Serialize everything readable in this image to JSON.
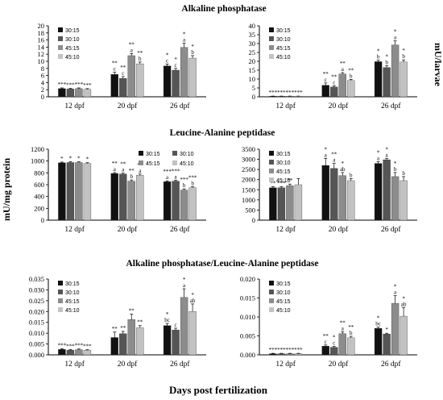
{
  "figure": {
    "section_titles": [
      "Alkaline phosphatase",
      "Leucine-Alanine peptidase",
      "Alkaline phosphatase/Leucine-Alanine peptidase"
    ],
    "left_axis_label": "mU/mg protein",
    "right_axis_label": "mU/larvae",
    "bottom_label": "Days post fertilization"
  },
  "colors": {
    "30:15": "#111111",
    "30:10": "#555555",
    "45:15": "#8c8c8c",
    "45:10": "#c2c2c2"
  },
  "chart_data": [
    {
      "id": "alp-protein",
      "type": "bar",
      "categories": [
        "12 dpf",
        "20 dpf",
        "26 dpf"
      ],
      "series": [
        {
          "name": "30:15",
          "values": [
            2.3,
            6.3,
            8.7
          ],
          "errors": [
            0.2,
            0.6,
            0.5
          ]
        },
        {
          "name": "30:10",
          "values": [
            2.2,
            5.2,
            7.5
          ],
          "errors": [
            0.2,
            0.5,
            0.5
          ]
        },
        {
          "name": "45:15",
          "values": [
            2.3,
            11.6,
            13.9
          ],
          "errors": [
            0.2,
            0.6,
            1.2
          ]
        },
        {
          "name": "45:10",
          "values": [
            2.1,
            9.3,
            10.9
          ],
          "errors": [
            0.2,
            0.5,
            0.7
          ]
        }
      ],
      "annotations": [
        [
          "***",
          "***",
          "***",
          "***"
        ],
        [
          "** c",
          "** c",
          "** a",
          "** b"
        ],
        [
          "* c",
          "* c",
          "* a",
          "* b"
        ]
      ],
      "ylim": [
        0,
        20
      ],
      "yticks": [
        0,
        2,
        4,
        6,
        8,
        10,
        12,
        14,
        16,
        18,
        20
      ],
      "legend": "top-left"
    },
    {
      "id": "alp-larvae",
      "type": "bar",
      "categories": [
        "12 dpf",
        "20 dpf",
        "26 dpf"
      ],
      "series": [
        {
          "name": "30:15",
          "values": [
            0.3,
            6.5,
            19.8
          ],
          "errors": [
            0.1,
            1.3,
            0.8
          ]
        },
        {
          "name": "30:10",
          "values": [
            0.3,
            5.5,
            16.5
          ],
          "errors": [
            0.1,
            0.7,
            1.0
          ]
        },
        {
          "name": "45:15",
          "values": [
            0.3,
            12.8,
            29.2
          ],
          "errors": [
            0.1,
            0.8,
            2.3
          ]
        },
        {
          "name": "45:10",
          "values": [
            0.3,
            9.2,
            19.6
          ],
          "errors": [
            0.1,
            0.6,
            1.2
          ]
        }
      ],
      "annotations": [
        [
          "***",
          "***",
          "***",
          "***"
        ],
        [
          "** c",
          "** c",
          "** a",
          "** b"
        ],
        [
          "* b",
          "* b",
          "* a",
          "* b"
        ]
      ],
      "ylim": [
        0,
        40
      ],
      "yticks": [
        0,
        5,
        10,
        15,
        20,
        25,
        30,
        35,
        40
      ],
      "legend": "top-left"
    },
    {
      "id": "lap-protein",
      "type": "bar",
      "categories": [
        "12 dpf",
        "20 dpf",
        "26 dpf"
      ],
      "series": [
        {
          "name": "30:15",
          "values": [
            970,
            790,
            650
          ],
          "errors": [
            12,
            15,
            15
          ]
        },
        {
          "name": "30:10",
          "values": [
            975,
            780,
            660
          ],
          "errors": [
            12,
            15,
            15
          ]
        },
        {
          "name": "45:15",
          "values": [
            975,
            660,
            510
          ],
          "errors": [
            12,
            20,
            20
          ]
        },
        {
          "name": "45:10",
          "values": [
            960,
            760,
            550
          ],
          "errors": [
            12,
            20,
            15
          ]
        }
      ],
      "annotations": [
        [
          "*",
          "*",
          "*",
          "*"
        ],
        [
          "** a",
          "** a",
          "** b",
          "** a"
        ],
        [
          "*** a",
          "*** a",
          "*** b",
          "*** b"
        ]
      ],
      "ylim": [
        0,
        1200
      ],
      "yticks": [
        0,
        200,
        400,
        600,
        800,
        1000,
        1200
      ],
      "legend": "top-right"
    },
    {
      "id": "lap-larvae",
      "type": "bar",
      "categories": [
        "12 dpf",
        "20 dpf",
        "26 dpf"
      ],
      "series": [
        {
          "name": "30:15",
          "values": [
            1600,
            2700,
            2800
          ],
          "errors": [
            50,
            350,
            80
          ]
        },
        {
          "name": "30:10",
          "values": [
            1600,
            2550,
            2980
          ],
          "errors": [
            50,
            250,
            60
          ]
        },
        {
          "name": "45:15",
          "values": [
            1700,
            2200,
            2150
          ],
          "errors": [
            80,
            150,
            200
          ]
        },
        {
          "name": "45:10",
          "values": [
            1750,
            1950,
            1950
          ],
          "errors": [
            300,
            100,
            200
          ]
        }
      ],
      "annotations": [
        [
          "**",
          "***",
          "**",
          ""
        ],
        [
          "* a",
          "** a",
          "* ab",
          "b"
        ],
        [
          "* a",
          "* a",
          "* b",
          "b"
        ]
      ],
      "ylim": [
        0,
        3500
      ],
      "yticks": [
        0,
        500,
        1000,
        1500,
        2000,
        2500,
        3000,
        3500
      ],
      "legend": "top-left"
    },
    {
      "id": "ratio-protein",
      "type": "bar",
      "categories": [
        "12 dpf",
        "20 dpf",
        "26 dpf"
      ],
      "series": [
        {
          "name": "30:15",
          "values": [
            0.0025,
            0.008,
            0.0135
          ],
          "errors": [
            0.0003,
            0.0025,
            0.001
          ]
        },
        {
          "name": "30:10",
          "values": [
            0.0022,
            0.0098,
            0.0115
          ],
          "errors": [
            0.0003,
            0.001,
            0.0008
          ]
        },
        {
          "name": "45:15",
          "values": [
            0.0024,
            0.0163,
            0.0265
          ],
          "errors": [
            0.0003,
            0.0025,
            0.004
          ]
        },
        {
          "name": "45:10",
          "values": [
            0.0021,
            0.0125,
            0.02
          ],
          "errors": [
            0.0003,
            0.001,
            0.0035
          ]
        }
      ],
      "annotations": [
        [
          "***",
          "***",
          "***",
          "***"
        ],
        [
          "**",
          "**",
          "**",
          "**"
        ],
        [
          "* bc",
          "c",
          "* a",
          "* ab"
        ]
      ],
      "ylim": [
        0,
        0.035
      ],
      "yticks": [
        0,
        0.005,
        0.01,
        0.015,
        0.02,
        0.025,
        0.03,
        0.035
      ],
      "legend": "top-left"
    },
    {
      "id": "ratio-larvae",
      "type": "bar",
      "categories": [
        "12 dpf",
        "20 dpf",
        "26 dpf"
      ],
      "series": [
        {
          "name": "30:15",
          "values": [
            0.0003,
            0.0023,
            0.007
          ],
          "errors": [
            0.0001,
            0.0003,
            0.0003
          ]
        },
        {
          "name": "30:10",
          "values": [
            0.0003,
            0.002,
            0.0055
          ],
          "errors": [
            0.0001,
            0.0002,
            0.0002
          ]
        },
        {
          "name": "45:15",
          "values": [
            0.0003,
            0.0056,
            0.0136
          ],
          "errors": [
            0.0001,
            0.0005,
            0.002
          ]
        },
        {
          "name": "45:10",
          "values": [
            0.0003,
            0.0045,
            0.0102
          ],
          "errors": [
            0.0001,
            0.0004,
            0.0023
          ]
        }
      ],
      "annotations": [
        [
          "***",
          "***",
          "***",
          "***"
        ],
        [
          "** c",
          "* c",
          "** a",
          "** b"
        ],
        [
          "* bc",
          "*",
          "* a",
          "* ab"
        ]
      ],
      "ylim": [
        0,
        0.02
      ],
      "yticks": [
        0,
        0.005,
        0.01,
        0.015,
        0.02
      ],
      "legend": "top-left"
    }
  ]
}
